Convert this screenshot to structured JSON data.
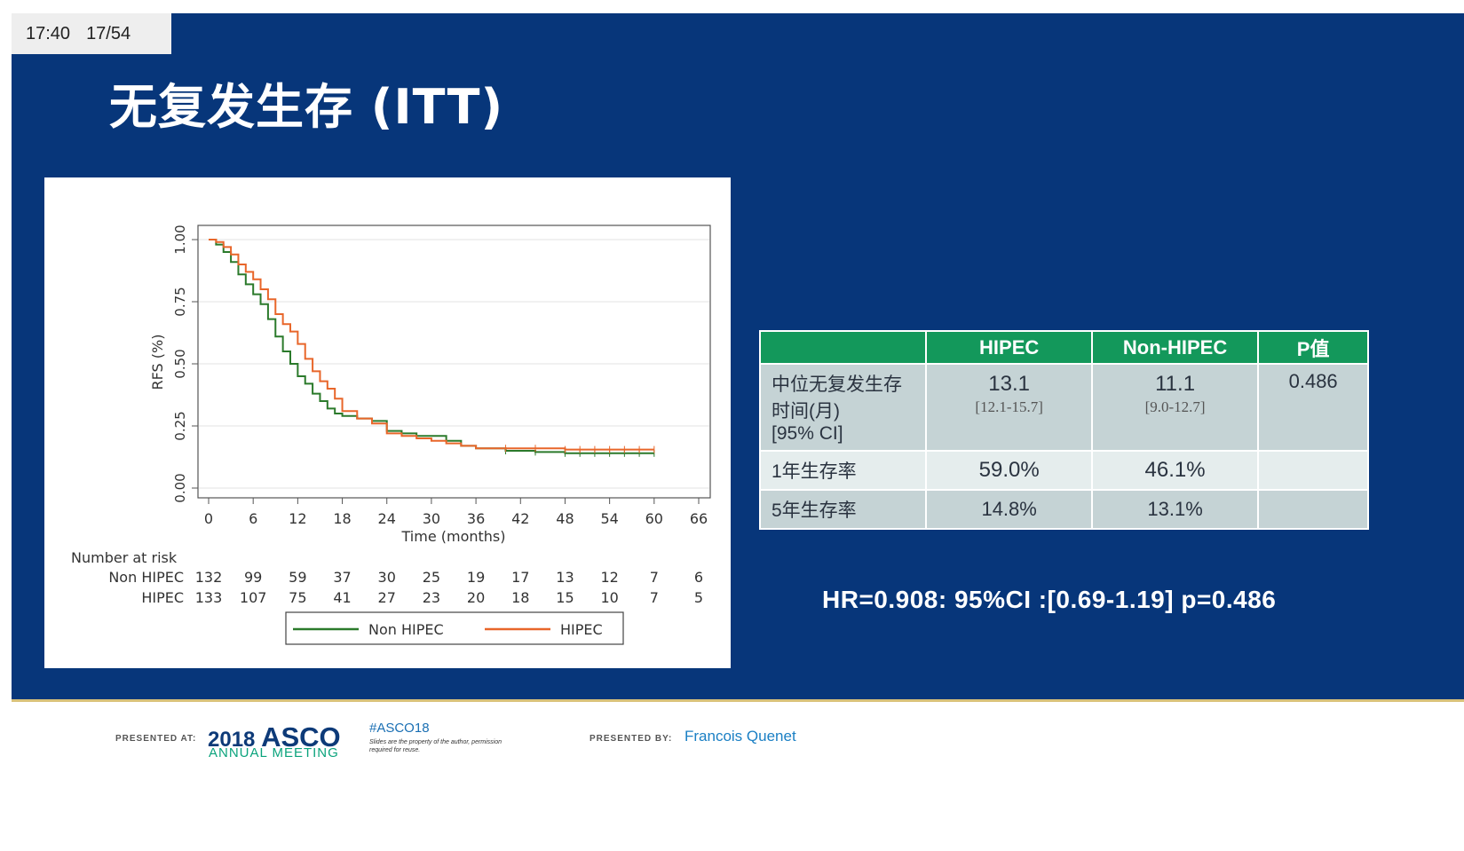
{
  "timer": {
    "clock": "17:40",
    "slide": "17/54"
  },
  "title": "无复发生存 (ITT)",
  "colors": {
    "slide_bg": "#07367a",
    "table_header": "#13985b",
    "non_hipec": "#2b7a2b",
    "hipec": "#e8662a"
  },
  "chart_data": {
    "type": "line",
    "title": "",
    "xlabel": "Time (months)",
    "ylabel": "RFS (%)",
    "xlim": [
      0,
      66
    ],
    "ylim": [
      0,
      1
    ],
    "xticks": [
      "0",
      "6",
      "12",
      "18",
      "24",
      "30",
      "36",
      "42",
      "48",
      "54",
      "60",
      "66"
    ],
    "yticks": [
      "0.00",
      "0.25",
      "0.50",
      "0.75",
      "1.00"
    ],
    "series": [
      {
        "name": "Non HIPEC",
        "color": "#2b7a2b",
        "x": [
          0,
          1,
          2,
          3,
          4,
          5,
          6,
          7,
          8,
          9,
          10,
          11,
          12,
          13,
          14,
          15,
          16,
          17,
          18,
          20,
          22,
          24,
          26,
          28,
          30,
          32,
          34,
          36,
          40,
          44,
          48,
          52,
          56,
          60
        ],
        "y": [
          1.0,
          0.98,
          0.95,
          0.91,
          0.86,
          0.82,
          0.78,
          0.74,
          0.68,
          0.61,
          0.55,
          0.5,
          0.45,
          0.42,
          0.38,
          0.35,
          0.32,
          0.3,
          0.29,
          0.28,
          0.27,
          0.23,
          0.22,
          0.21,
          0.21,
          0.19,
          0.17,
          0.16,
          0.15,
          0.145,
          0.14,
          0.14,
          0.14,
          0.14
        ]
      },
      {
        "name": "HIPEC",
        "color": "#e8662a",
        "x": [
          0,
          1,
          2,
          3,
          4,
          5,
          6,
          7,
          8,
          9,
          10,
          11,
          12,
          13,
          14,
          15,
          16,
          17,
          18,
          20,
          22,
          24,
          26,
          28,
          30,
          32,
          34,
          36,
          40,
          44,
          48,
          52,
          56,
          60
        ],
        "y": [
          1.0,
          0.99,
          0.97,
          0.94,
          0.9,
          0.87,
          0.84,
          0.8,
          0.76,
          0.7,
          0.66,
          0.63,
          0.58,
          0.52,
          0.47,
          0.43,
          0.4,
          0.36,
          0.31,
          0.28,
          0.26,
          0.22,
          0.21,
          0.2,
          0.19,
          0.18,
          0.17,
          0.16,
          0.16,
          0.16,
          0.155,
          0.155,
          0.155,
          0.155
        ]
      }
    ],
    "risk_table": {
      "heading": "Number at risk",
      "rows": [
        {
          "label": "Non HIPEC",
          "values": [
            "132",
            "99",
            "59",
            "37",
            "30",
            "25",
            "19",
            "17",
            "13",
            "12",
            "7",
            "6"
          ]
        },
        {
          "label": "HIPEC",
          "values": [
            "133",
            "107",
            "75",
            "41",
            "27",
            "23",
            "20",
            "18",
            "15",
            "10",
            "7",
            "5"
          ]
        }
      ]
    },
    "legend": {
      "position": "bottom",
      "items": [
        "Non HIPEC",
        "HIPEC"
      ]
    }
  },
  "summary_table": {
    "headers": [
      "",
      "HIPEC",
      "Non-HIPEC",
      "P值"
    ],
    "rows": [
      {
        "label_lines": [
          "中位无复发生存",
          "时间(月)",
          "[95% CI]"
        ],
        "hipec": "13.1",
        "hipec_ci": "[12.1-15.7]",
        "non_hipec": "11.1",
        "non_hipec_ci": "[9.0-12.7]",
        "p": "0.486"
      },
      {
        "label": "1年生存率",
        "hipec": "59.0%",
        "non_hipec": "46.1%",
        "p": ""
      },
      {
        "label": "5年生存率",
        "hipec": "14.8%",
        "non_hipec": "13.1%",
        "p": ""
      }
    ]
  },
  "hr_text": "HR=0.908: 95%CI :[0.69-1.19] p=0.486",
  "footer": {
    "presented_at": "PRESENTED AT:",
    "year": "2018",
    "asco": "ASCO",
    "meeting": "ANNUAL MEETING",
    "hashtag": "#ASCO18",
    "note": "Slides are the property of the author, permission required for reuse.",
    "presented_by": "PRESENTED BY:",
    "presenter": "Francois Quenet"
  }
}
